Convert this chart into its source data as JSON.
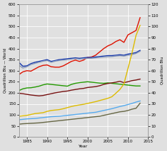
{
  "title": "",
  "xlabel": "Year",
  "ylabel_left": "Quadrillion Btu — World",
  "ylabel_right": "Quadrillion Btu",
  "xlim": [
    1983,
    2014
  ],
  "ylim_left": [
    0,
    600
  ],
  "ylim_right": [
    0,
    120
  ],
  "yticks_left": [
    0,
    50,
    100,
    150,
    200,
    250,
    300,
    350,
    400,
    450,
    500,
    550,
    600
  ],
  "yticks_right": [
    0,
    10,
    20,
    30,
    40,
    50,
    60,
    70,
    80,
    90,
    100,
    110,
    120
  ],
  "xticks": [
    1985,
    1990,
    1995,
    2000,
    2005,
    2010,
    2015
  ],
  "bg": "#e0e0e0",
  "grid_color": "#ffffff",
  "series": [
    {
      "key": "world_red",
      "color": "#dd1100",
      "linewidth": 1.0,
      "years": [
        1983,
        1984,
        1985,
        1986,
        1987,
        1988,
        1989,
        1990,
        1991,
        1992,
        1993,
        1994,
        1995,
        1996,
        1997,
        1998,
        1999,
        2000,
        2001,
        2002,
        2003,
        2004,
        2005,
        2006,
        2007,
        2008,
        2009,
        2010,
        2011,
        2012,
        2013
      ],
      "values": [
        282,
        295,
        300,
        298,
        308,
        318,
        324,
        326,
        318,
        316,
        316,
        322,
        332,
        342,
        348,
        342,
        348,
        360,
        362,
        370,
        385,
        400,
        412,
        420,
        432,
        440,
        428,
        462,
        472,
        482,
        540
      ]
    },
    {
      "key": "dark_blue",
      "color": "#1133aa",
      "linewidth": 1.0,
      "years": [
        1983,
        1984,
        1985,
        1986,
        1987,
        1988,
        1989,
        1990,
        1991,
        1992,
        1993,
        1994,
        1995,
        1996,
        1997,
        1998,
        1999,
        2000,
        2001,
        2002,
        2003,
        2004,
        2005,
        2006,
        2007,
        2008,
        2009,
        2010,
        2011,
        2012,
        2013
      ],
      "values": [
        338,
        320,
        322,
        332,
        338,
        342,
        346,
        350,
        342,
        346,
        350,
        352,
        354,
        356,
        358,
        356,
        358,
        360,
        360,
        362,
        364,
        366,
        368,
        368,
        370,
        372,
        370,
        375,
        378,
        382,
        392
      ]
    },
    {
      "key": "gray_blue",
      "color": "#8899bb",
      "linewidth": 1.0,
      "years": [
        1983,
        1984,
        1985,
        1986,
        1987,
        1988,
        1989,
        1990,
        1991,
        1992,
        1993,
        1994,
        1995,
        1996,
        1997,
        1998,
        1999,
        2000,
        2001,
        2002,
        2003,
        2004,
        2005,
        2006,
        2007,
        2008,
        2009,
        2010,
        2011,
        2012,
        2013
      ],
      "values": [
        325,
        312,
        318,
        328,
        333,
        338,
        343,
        346,
        338,
        343,
        346,
        348,
        350,
        352,
        354,
        352,
        354,
        356,
        356,
        358,
        360,
        362,
        363,
        364,
        366,
        368,
        366,
        370,
        373,
        378,
        388
      ]
    },
    {
      "key": "green",
      "color": "#229900",
      "linewidth": 1.0,
      "years": [
        1983,
        1984,
        1985,
        1986,
        1987,
        1988,
        1989,
        1990,
        1991,
        1992,
        1993,
        1994,
        1995,
        1996,
        1997,
        1998,
        1999,
        2000,
        2001,
        2002,
        2003,
        2004,
        2005,
        2006,
        2007,
        2008,
        2009,
        2010,
        2011,
        2012,
        2013
      ],
      "values": [
        210,
        218,
        222,
        223,
        226,
        230,
        236,
        240,
        238,
        236,
        234,
        232,
        230,
        238,
        243,
        246,
        248,
        250,
        248,
        246,
        244,
        243,
        245,
        243,
        241,
        239,
        237,
        235,
        233,
        231,
        231
      ]
    },
    {
      "key": "dark_maroon",
      "color": "#771111",
      "linewidth": 1.0,
      "years": [
        1983,
        1984,
        1985,
        1986,
        1987,
        1988,
        1989,
        1990,
        1991,
        1992,
        1993,
        1994,
        1995,
        1996,
        1997,
        1998,
        1999,
        2000,
        2001,
        2002,
        2003,
        2004,
        2005,
        2006,
        2007,
        2008,
        2009,
        2010,
        2011,
        2012,
        2013
      ],
      "values": [
        198,
        196,
        193,
        190,
        188,
        186,
        188,
        192,
        196,
        200,
        203,
        206,
        208,
        212,
        215,
        218,
        220,
        224,
        226,
        228,
        232,
        238,
        242,
        245,
        248,
        252,
        246,
        250,
        255,
        258,
        262
      ]
    },
    {
      "key": "yellow",
      "color": "#ddbb00",
      "linewidth": 1.0,
      "years": [
        1983,
        1984,
        1985,
        1986,
        1987,
        1988,
        1989,
        1990,
        1991,
        1992,
        1993,
        1994,
        1995,
        1996,
        1997,
        1998,
        1999,
        2000,
        2001,
        2002,
        2003,
        2004,
        2005,
        2006,
        2007,
        2008,
        2009,
        2010,
        2011,
        2012,
        2013
      ],
      "values": [
        94,
        96,
        98,
        102,
        106,
        108,
        110,
        116,
        120,
        122,
        124,
        128,
        133,
        138,
        142,
        145,
        148,
        152,
        156,
        160,
        165,
        170,
        175,
        182,
        198,
        215,
        240,
        310,
        380,
        460,
        505
      ]
    },
    {
      "key": "light_blue",
      "color": "#55aaee",
      "linewidth": 1.0,
      "years": [
        1983,
        1984,
        1985,
        1986,
        1987,
        1988,
        1989,
        1990,
        1991,
        1992,
        1993,
        1994,
        1995,
        1996,
        1997,
        1998,
        1999,
        2000,
        2001,
        2002,
        2003,
        2004,
        2005,
        2006,
        2007,
        2008,
        2009,
        2010,
        2011,
        2012,
        2013
      ],
      "values": [
        78,
        80,
        82,
        83,
        84,
        86,
        88,
        90,
        92,
        93,
        94,
        96,
        98,
        100,
        102,
        104,
        106,
        108,
        110,
        112,
        116,
        120,
        124,
        128,
        133,
        138,
        142,
        147,
        152,
        158,
        163
      ]
    },
    {
      "key": "dark_olive",
      "color": "#666644",
      "linewidth": 1.0,
      "years": [
        1983,
        1984,
        1985,
        1986,
        1987,
        1988,
        1989,
        1990,
        1991,
        1992,
        1993,
        1994,
        1995,
        1996,
        1997,
        1998,
        1999,
        2000,
        2001,
        2002,
        2003,
        2004,
        2005,
        2006,
        2007,
        2008,
        2009,
        2010,
        2011,
        2012,
        2013
      ],
      "values": [
        58,
        60,
        61,
        62,
        63,
        64,
        66,
        68,
        70,
        72,
        74,
        76,
        78,
        80,
        82,
        84,
        86,
        88,
        90,
        92,
        94,
        98,
        102,
        106,
        110,
        114,
        116,
        120,
        126,
        130,
        153
      ]
    }
  ]
}
